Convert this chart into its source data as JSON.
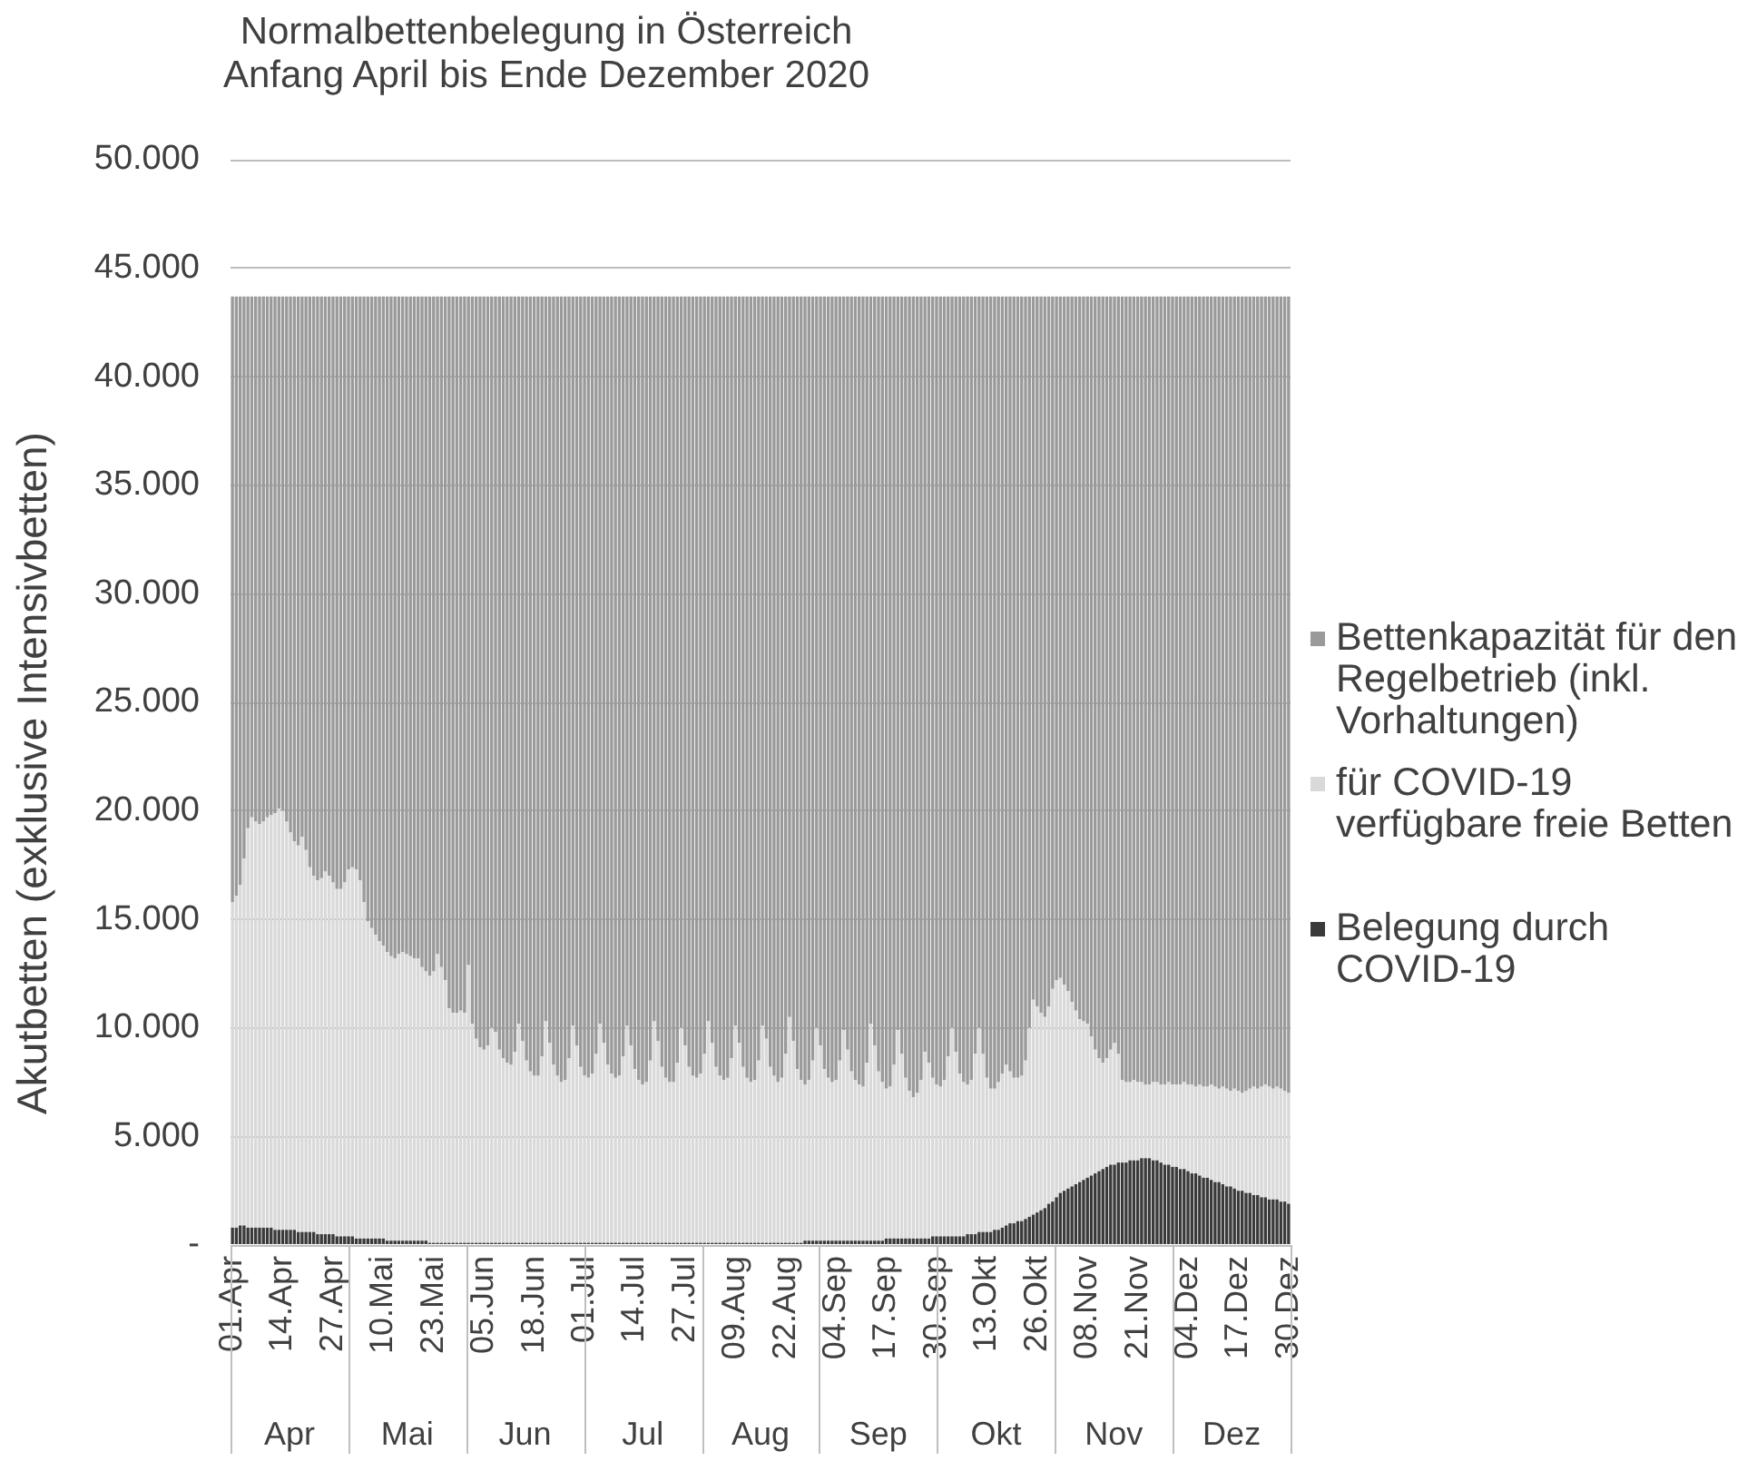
{
  "chart_data": {
    "type": "bar",
    "title": "Normalbettenbelegung in Österreich",
    "subtitle": "Anfang April bis Ende Dezember 2020",
    "ylabel": "Akutbetten (exklusive Intensivbetten)",
    "categories": [
      "01.Apr",
      null,
      null,
      null,
      null,
      null,
      null,
      null,
      null,
      null,
      null,
      null,
      null,
      "14.Apr",
      null,
      null,
      null,
      null,
      null,
      null,
      null,
      null,
      null,
      null,
      null,
      null,
      "27.Apr",
      null,
      null,
      null,
      null,
      null,
      null,
      null,
      null,
      null,
      null,
      null,
      null,
      "10.Mai",
      null,
      null,
      null,
      null,
      null,
      null,
      null,
      null,
      null,
      null,
      null,
      null,
      "23.Mai",
      null,
      null,
      null,
      null,
      null,
      null,
      null,
      null,
      null,
      null,
      null,
      null,
      "05.Jun",
      null,
      null,
      null,
      null,
      null,
      null,
      null,
      null,
      null,
      null,
      null,
      null,
      "18.Jun",
      null,
      null,
      null,
      null,
      null,
      null,
      null,
      null,
      null,
      null,
      null,
      null,
      "01.Jul",
      null,
      null,
      null,
      null,
      null,
      null,
      null,
      null,
      null,
      null,
      null,
      null,
      "14.Jul",
      null,
      null,
      null,
      null,
      null,
      null,
      null,
      null,
      null,
      null,
      null,
      null,
      "27.Jul",
      null,
      null,
      null,
      null,
      null,
      null,
      null,
      null,
      null,
      null,
      null,
      null,
      "09.Aug",
      null,
      null,
      null,
      null,
      null,
      null,
      null,
      null,
      null,
      null,
      null,
      null,
      "22.Aug",
      null,
      null,
      null,
      null,
      null,
      null,
      null,
      null,
      null,
      null,
      null,
      null,
      "04.Sep",
      null,
      null,
      null,
      null,
      null,
      null,
      null,
      null,
      null,
      null,
      null,
      null,
      "17.Sep",
      null,
      null,
      null,
      null,
      null,
      null,
      null,
      null,
      null,
      null,
      null,
      null,
      "30.Sep",
      null,
      null,
      null,
      null,
      null,
      null,
      null,
      null,
      null,
      null,
      null,
      null,
      "13.Okt",
      null,
      null,
      null,
      null,
      null,
      null,
      null,
      null,
      null,
      null,
      null,
      null,
      "26.Okt",
      null,
      null,
      null,
      null,
      null,
      null,
      null,
      null,
      null,
      null,
      null,
      null,
      "08.Nov",
      null,
      null,
      null,
      null,
      null,
      null,
      null,
      null,
      null,
      null,
      null,
      null,
      "21.Nov",
      null,
      null,
      null,
      null,
      null,
      null,
      null,
      null,
      null,
      null,
      null,
      null,
      "04.Dez",
      null,
      null,
      null,
      null,
      null,
      null,
      null,
      null,
      null,
      null,
      null,
      null,
      "17.Dez",
      null,
      null,
      null,
      null,
      null,
      null,
      null,
      null,
      null,
      null,
      null,
      null,
      "30.Dez"
    ],
    "stacked": true,
    "series": [
      {
        "name": "Belegung durch COVID-19",
        "color": "#3a3a3a",
        "values": [
          800,
          800,
          900,
          900,
          800,
          800,
          800,
          800,
          800,
          800,
          800,
          700,
          700,
          700,
          700,
          700,
          700,
          600,
          600,
          600,
          600,
          600,
          500,
          500,
          500,
          500,
          500,
          400,
          400,
          400,
          400,
          400,
          300,
          300,
          300,
          300,
          300,
          300,
          300,
          300,
          200,
          200,
          200,
          200,
          200,
          200,
          200,
          200,
          200,
          200,
          200,
          100,
          100,
          100,
          100,
          100,
          100,
          100,
          100,
          100,
          100,
          100,
          100,
          100,
          100,
          100,
          100,
          100,
          100,
          100,
          100,
          100,
          100,
          100,
          100,
          100,
          100,
          100,
          100,
          100,
          100,
          100,
          100,
          100,
          100,
          100,
          100,
          100,
          100,
          100,
          100,
          100,
          100,
          100,
          100,
          100,
          100,
          100,
          100,
          100,
          100,
          100,
          100,
          100,
          100,
          100,
          100,
          100,
          100,
          100,
          100,
          100,
          100,
          100,
          100,
          100,
          100,
          100,
          100,
          100,
          100,
          100,
          100,
          100,
          100,
          100,
          100,
          100,
          100,
          100,
          100,
          100,
          100,
          100,
          100,
          100,
          100,
          100,
          100,
          100,
          100,
          100,
          100,
          100,
          100,
          100,
          100,
          100,
          200,
          200,
          200,
          200,
          200,
          200,
          200,
          200,
          200,
          200,
          200,
          200,
          200,
          200,
          200,
          200,
          200,
          200,
          200,
          200,
          200,
          300,
          300,
          300,
          300,
          300,
          300,
          300,
          300,
          300,
          300,
          300,
          300,
          400,
          400,
          400,
          400,
          400,
          400,
          400,
          400,
          400,
          500,
          500,
          500,
          600,
          600,
          600,
          600,
          700,
          700,
          800,
          900,
          1000,
          1000,
          1100,
          1100,
          1200,
          1300,
          1400,
          1500,
          1600,
          1700,
          1900,
          2000,
          2200,
          2400,
          2500,
          2600,
          2700,
          2800,
          2900,
          3000,
          3100,
          3200,
          3300,
          3400,
          3500,
          3600,
          3700,
          3700,
          3800,
          3800,
          3800,
          3900,
          3900,
          3900,
          4000,
          4000,
          4000,
          3900,
          3900,
          3800,
          3700,
          3700,
          3600,
          3600,
          3500,
          3500,
          3400,
          3300,
          3300,
          3200,
          3100,
          3100,
          3000,
          2900,
          2900,
          2800,
          2700,
          2700,
          2600,
          2500,
          2500,
          2400,
          2400,
          2300,
          2300,
          2200,
          2200,
          2100,
          2100,
          2100,
          2000,
          2000,
          1900
        ]
      },
      {
        "name": "für COVID-19 verfügbare freie Betten",
        "color": "#d9d9d9",
        "values": [
          15000,
          15300,
          15700,
          16900,
          18400,
          18900,
          18700,
          18600,
          18700,
          18900,
          19000,
          19200,
          19400,
          19300,
          18800,
          18300,
          17900,
          17800,
          18200,
          17600,
          16800,
          16400,
          16300,
          16400,
          16700,
          16500,
          16200,
          16000,
          16000,
          16300,
          16900,
          17000,
          17000,
          16500,
          15500,
          14600,
          14300,
          14000,
          13700,
          13500,
          13300,
          13100,
          13000,
          13200,
          13300,
          13200,
          13100,
          13000,
          13000,
          12600,
          12400,
          12300,
          12500,
          13300,
          12700,
          12100,
          10800,
          10600,
          10600,
          10700,
          10600,
          12800,
          10100,
          9400,
          9000,
          8900,
          9100,
          9900,
          9700,
          8900,
          8500,
          8300,
          8200,
          8800,
          10100,
          9300,
          8400,
          7900,
          7700,
          7700,
          8600,
          10200,
          9200,
          8200,
          7700,
          7400,
          7500,
          8500,
          10000,
          9100,
          8100,
          7700,
          7600,
          7800,
          8700,
          10100,
          9200,
          8200,
          7800,
          7600,
          7700,
          8600,
          10000,
          9100,
          8000,
          7500,
          7300,
          7400,
          8400,
          10200,
          9300,
          8100,
          7600,
          7400,
          7400,
          8300,
          9900,
          9100,
          8100,
          7700,
          7600,
          7800,
          8700,
          10200,
          9200,
          8100,
          7700,
          7500,
          7600,
          8500,
          10000,
          9200,
          8100,
          7600,
          7400,
          7500,
          8400,
          10000,
          9400,
          8100,
          7700,
          7400,
          7600,
          8700,
          10400,
          9300,
          8000,
          7500,
          7200,
          7400,
          8300,
          9800,
          9000,
          7900,
          7500,
          7300,
          7400,
          8300,
          9700,
          8800,
          7800,
          7400,
          7200,
          7100,
          8200,
          10000,
          9000,
          7800,
          7300,
          6900,
          7000,
          8000,
          9600,
          8500,
          7400,
          6800,
          6500,
          6700,
          7300,
          8600,
          8100,
          7300,
          7000,
          6900,
          7200,
          8300,
          9600,
          8500,
          7500,
          7100,
          6900,
          7100,
          8300,
          9400,
          8200,
          7100,
          6600,
          6500,
          6800,
          7100,
          7400,
          7000,
          6700,
          6600,
          6700,
          7300,
          8700,
          9900,
          9500,
          9100,
          8800,
          9100,
          9800,
          10000,
          9900,
          9500,
          9100,
          8500,
          8000,
          7500,
          7300,
          7100,
          6400,
          5700,
          5200,
          4900,
          5000,
          5300,
          5600,
          5000,
          3800,
          3700,
          3600,
          3700,
          3600,
          3500,
          3400,
          3400,
          3600,
          3600,
          3600,
          3700,
          3800,
          3800,
          3800,
          3900,
          4000,
          4000,
          4100,
          4000,
          4200,
          4200,
          4200,
          4400,
          4400,
          4300,
          4500,
          4500,
          4400,
          4600,
          4600,
          4500,
          4700,
          4800,
          5000,
          4900,
          5100,
          5200,
          5200,
          5100,
          5200,
          5200,
          5100,
          5100
        ]
      },
      {
        "name": "Bettenkapazität für den Regelbetrieb (inkl. Vorhaltungen)",
        "color": "#9a9a9a",
        "values": [
          27900,
          27600,
          27100,
          25900,
          24500,
          24000,
          24200,
          24300,
          24200,
          24000,
          23900,
          23800,
          23600,
          23700,
          24200,
          24700,
          25100,
          25300,
          24900,
          25500,
          26300,
          26700,
          26900,
          26800,
          26500,
          26700,
          27000,
          27300,
          27300,
          27000,
          26400,
          26300,
          26400,
          26900,
          27900,
          28800,
          29100,
          29400,
          29700,
          29900,
          30200,
          30400,
          30500,
          30300,
          30200,
          30300,
          30400,
          30500,
          30500,
          30900,
          31100,
          31300,
          31100,
          30300,
          30900,
          31500,
          32800,
          33000,
          33000,
          32900,
          33000,
          30800,
          33500,
          34200,
          34600,
          34700,
          34500,
          33700,
          33900,
          34700,
          35100,
          35300,
          35400,
          34800,
          33500,
          34300,
          35200,
          35700,
          35900,
          35900,
          35000,
          33400,
          34400,
          35400,
          35900,
          36200,
          36100,
          35100,
          33600,
          34500,
          35500,
          35900,
          36000,
          35800,
          34900,
          33500,
          34400,
          35400,
          35800,
          36000,
          35900,
          35000,
          33600,
          34500,
          35600,
          36100,
          36300,
          36200,
          35200,
          33400,
          34300,
          35500,
          36000,
          36200,
          36200,
          35300,
          33700,
          34500,
          35500,
          35900,
          36000,
          35800,
          34900,
          33400,
          34400,
          35500,
          35900,
          36100,
          36000,
          35100,
          33600,
          34400,
          35500,
          36000,
          36200,
          36100,
          35200,
          33600,
          34200,
          35500,
          35900,
          36200,
          36000,
          34900,
          33200,
          34300,
          35600,
          36100,
          36300,
          36100,
          35200,
          33700,
          34500,
          35600,
          36000,
          36200,
          36100,
          35200,
          33800,
          34700,
          35700,
          36100,
          36300,
          36400,
          35300,
          33500,
          34500,
          35700,
          36200,
          36500,
          36400,
          35400,
          33800,
          34900,
          36000,
          36600,
          36900,
          36700,
          36100,
          34800,
          35300,
          36000,
          36300,
          36400,
          36100,
          35000,
          33700,
          34800,
          35800,
          36200,
          36300,
          36100,
          34900,
          33700,
          34900,
          36000,
          36500,
          36500,
          36200,
          35800,
          35400,
          35700,
          36000,
          36000,
          35900,
          35200,
          33700,
          32400,
          32700,
          33000,
          33200,
          32700,
          31900,
          31500,
          31400,
          31700,
          32000,
          32500,
          32900,
          33300,
          33400,
          33500,
          34100,
          34700,
          35100,
          35300,
          35100,
          34700,
          34400,
          34900,
          36100,
          36200,
          36200,
          36100,
          36200,
          36200,
          36300,
          36300,
          36200,
          36200,
          36300,
          36300,
          36200,
          36300,
          36300,
          36300,
          36200,
          36300,
          36300,
          36400,
          36300,
          36400,
          36400,
          36300,
          36400,
          36500,
          36400,
          36500,
          36600,
          36500,
          36600,
          36700,
          36600,
          36500,
          36400,
          36500,
          36400,
          36300,
          36400,
          36500,
          36400,
          36500,
          36600,
          36700
        ]
      }
    ],
    "ylim": [
      0,
      50000
    ],
    "yticks": [
      {
        "value": 0,
        "label": "-"
      },
      {
        "value": 5000,
        "label": "5.000"
      },
      {
        "value": 10000,
        "label": "10.000"
      },
      {
        "value": 15000,
        "label": "15.000"
      },
      {
        "value": 20000,
        "label": "20.000"
      },
      {
        "value": 25000,
        "label": "25.000"
      },
      {
        "value": 30000,
        "label": "30.000"
      },
      {
        "value": 35000,
        "label": "35.000"
      },
      {
        "value": 40000,
        "label": "40.000"
      },
      {
        "value": 45000,
        "label": "45.000"
      },
      {
        "value": 50000,
        "label": "50.000"
      }
    ],
    "grid": "y",
    "legend": "right",
    "annotations": [
      "Apr",
      "Mai",
      "Jun",
      "Jul",
      "Aug",
      "Sep",
      "Okt",
      "Nov",
      "Dez"
    ]
  }
}
